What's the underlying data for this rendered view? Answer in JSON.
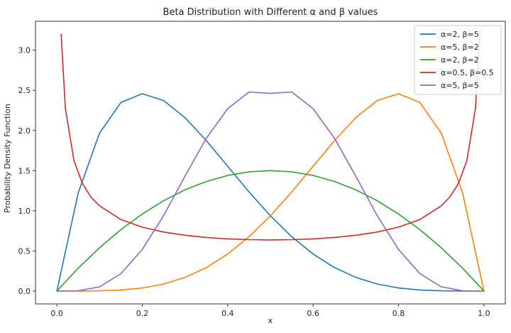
{
  "chart_data": {
    "type": "line",
    "title": "Beta Distribution with Different α and β values",
    "xlabel": "x",
    "ylabel": "Probability Density Function",
    "xlim": [
      -0.05,
      1.05
    ],
    "ylim": [
      -0.16,
      3.36
    ],
    "grid": false,
    "legend_position": "top-right",
    "xticks": [
      0.0,
      0.2,
      0.4,
      0.6,
      0.8,
      1.0
    ],
    "xtick_labels": [
      "0.0",
      "0.2",
      "0.4",
      "0.6",
      "0.8",
      "1.0"
    ],
    "yticks": [
      0.0,
      0.5,
      1.0,
      1.5,
      2.0,
      2.5,
      3.0
    ],
    "ytick_labels": [
      "0.0",
      "0.5",
      "1.0",
      "1.5",
      "2.0",
      "2.5",
      "3.0"
    ],
    "series": [
      {
        "name": "α=2, β=5",
        "color": "#1f77b4",
        "x": [
          0.0,
          0.05,
          0.1,
          0.15,
          0.2,
          0.25,
          0.3,
          0.35,
          0.4,
          0.45,
          0.5,
          0.55,
          0.6,
          0.65,
          0.7,
          0.75,
          0.8,
          0.85,
          0.9,
          0.95,
          1.0
        ],
        "y": [
          0.0,
          1.222,
          1.968,
          2.349,
          2.458,
          2.373,
          2.161,
          1.874,
          1.555,
          1.235,
          0.938,
          0.677,
          0.461,
          0.292,
          0.17,
          0.088,
          0.038,
          0.013,
          0.003,
          0.0002,
          0.0
        ]
      },
      {
        "name": "α=5, β=2",
        "color": "#ff7f0e",
        "x": [
          0.0,
          0.05,
          0.1,
          0.15,
          0.2,
          0.25,
          0.3,
          0.35,
          0.4,
          0.45,
          0.5,
          0.55,
          0.6,
          0.65,
          0.7,
          0.75,
          0.8,
          0.85,
          0.9,
          0.95,
          1.0
        ],
        "y": [
          0.0,
          0.0002,
          0.003,
          0.013,
          0.038,
          0.088,
          0.17,
          0.292,
          0.461,
          0.677,
          0.938,
          1.235,
          1.555,
          1.874,
          2.161,
          2.373,
          2.458,
          2.349,
          1.968,
          1.222,
          0.0
        ]
      },
      {
        "name": "α=2, β=2",
        "color": "#2ca02c",
        "x": [
          0.0,
          0.05,
          0.1,
          0.15,
          0.2,
          0.25,
          0.3,
          0.35,
          0.4,
          0.45,
          0.5,
          0.55,
          0.6,
          0.65,
          0.7,
          0.75,
          0.8,
          0.85,
          0.9,
          0.95,
          1.0
        ],
        "y": [
          0.0,
          0.285,
          0.54,
          0.765,
          0.96,
          1.125,
          1.26,
          1.365,
          1.44,
          1.485,
          1.5,
          1.485,
          1.44,
          1.365,
          1.26,
          1.125,
          0.96,
          0.765,
          0.54,
          0.285,
          0.0
        ]
      },
      {
        "name": "α=0.5, β=0.5",
        "color": "#d62728",
        "x": [
          0.01,
          0.02,
          0.04,
          0.06,
          0.08,
          0.1,
          0.15,
          0.2,
          0.25,
          0.3,
          0.35,
          0.4,
          0.45,
          0.5,
          0.55,
          0.6,
          0.65,
          0.7,
          0.75,
          0.8,
          0.85,
          0.9,
          0.92,
          0.94,
          0.96,
          0.98,
          0.99
        ],
        "y": [
          3.199,
          2.274,
          1.624,
          1.338,
          1.17,
          1.061,
          0.891,
          0.796,
          0.735,
          0.695,
          0.668,
          0.65,
          0.64,
          0.637,
          0.64,
          0.65,
          0.668,
          0.695,
          0.735,
          0.796,
          0.891,
          1.061,
          1.17,
          1.338,
          1.624,
          2.274,
          3.199
        ]
      },
      {
        "name": "α=5, β=5",
        "color": "#9467bd",
        "x": [
          0.0,
          0.05,
          0.1,
          0.15,
          0.2,
          0.25,
          0.3,
          0.35,
          0.4,
          0.45,
          0.5,
          0.55,
          0.6,
          0.65,
          0.7,
          0.75,
          0.8,
          0.85,
          0.9,
          0.95,
          1.0
        ],
        "y": [
          0.0,
          0.004,
          0.052,
          0.218,
          0.518,
          0.939,
          1.429,
          1.903,
          2.271,
          2.48,
          2.461,
          2.48,
          2.271,
          1.903,
          1.429,
          0.939,
          0.518,
          0.218,
          0.052,
          0.004,
          0.0
        ]
      }
    ]
  }
}
